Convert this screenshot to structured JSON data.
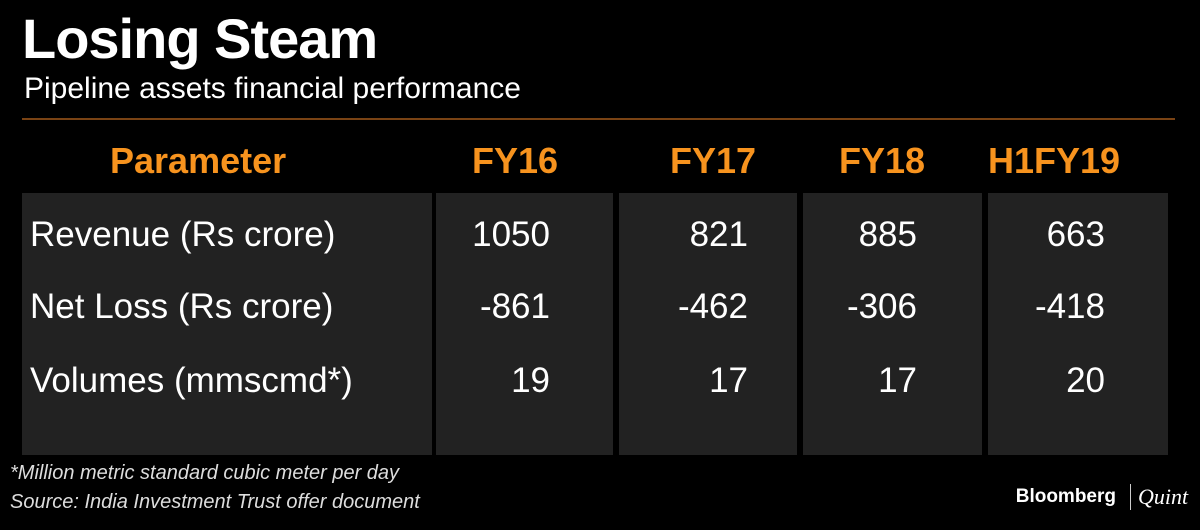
{
  "header": {
    "title": "Losing Steam",
    "subtitle": "Pipeline assets financial performance"
  },
  "table": {
    "columns": [
      "Parameter",
      "FY16",
      "FY17",
      "FY18",
      "H1FY19"
    ],
    "rows": [
      [
        "Revenue (Rs crore)",
        1050,
        821,
        885,
        663
      ],
      [
        "Net Loss (Rs crore)",
        -861,
        -462,
        -306,
        -418
      ],
      [
        "Volumes (mmscmd*)",
        19,
        17,
        17,
        20
      ]
    ]
  },
  "footer": {
    "footnote": "*Million metric standard cubic meter per day",
    "source": "Source: India Investment Trust offer document",
    "brand": "Bloomberg",
    "brand_partner": "Quint"
  }
}
